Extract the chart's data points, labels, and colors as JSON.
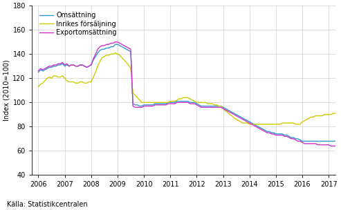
{
  "title": "",
  "ylabel": "Index (2010=100)",
  "xlabel": "",
  "source": "Källa: Statistikcentralen",
  "ylim": [
    40,
    180
  ],
  "yticks": [
    40,
    60,
    80,
    100,
    120,
    140,
    160,
    180
  ],
  "xlim": [
    2005.75,
    2017.25
  ],
  "xticks": [
    2006,
    2007,
    2008,
    2009,
    2010,
    2011,
    2012,
    2013,
    2014,
    2015,
    2016,
    2017
  ],
  "legend_labels": [
    "Omsättning",
    "Inrikes försäljning",
    "Exportomsättning"
  ],
  "colors": [
    "#3399cc",
    "#cccc00",
    "#cc33cc"
  ],
  "line_width": 1.0,
  "omsattning": [
    125,
    127,
    126,
    127,
    128,
    129,
    129,
    130,
    130,
    131,
    131,
    132,
    130,
    131,
    130,
    131,
    131,
    130,
    130,
    131,
    131,
    130,
    129,
    130,
    131,
    135,
    138,
    141,
    143,
    144,
    144,
    145,
    145,
    146,
    146,
    148,
    148,
    147,
    146,
    145,
    144,
    143,
    142,
    99,
    98,
    98,
    97,
    97,
    98,
    98,
    98,
    98,
    98,
    99,
    99,
    99,
    99,
    99,
    99,
    100,
    100,
    100,
    100,
    101,
    101,
    101,
    101,
    101,
    101,
    100,
    100,
    100,
    99,
    98,
    97,
    97,
    97,
    97,
    97,
    97,
    97,
    97,
    97,
    97,
    96,
    95,
    94,
    93,
    92,
    91,
    90,
    89,
    88,
    87,
    86,
    85,
    84,
    83,
    82,
    81,
    80,
    79,
    78,
    77,
    76,
    76,
    75,
    75,
    74,
    74,
    74,
    74,
    73,
    73,
    72,
    71,
    71,
    70,
    70,
    69,
    68,
    68,
    68,
    68,
    68,
    68,
    68,
    68,
    68,
    68,
    68,
    68,
    68,
    68,
    68,
    68,
    68,
    68,
    68,
    68,
    68,
    68,
    68,
    68
  ],
  "inrikes": [
    113,
    115,
    116,
    118,
    120,
    121,
    120,
    122,
    122,
    121,
    121,
    122,
    120,
    118,
    117,
    117,
    117,
    116,
    116,
    117,
    117,
    116,
    116,
    117,
    117,
    121,
    125,
    130,
    134,
    137,
    138,
    139,
    139,
    140,
    140,
    141,
    140,
    139,
    137,
    135,
    133,
    131,
    128,
    108,
    106,
    104,
    102,
    100,
    100,
    100,
    100,
    100,
    100,
    100,
    100,
    100,
    100,
    100,
    100,
    100,
    101,
    101,
    101,
    102,
    103,
    103,
    104,
    104,
    104,
    103,
    102,
    101,
    100,
    100,
    100,
    100,
    100,
    99,
    99,
    99,
    98,
    98,
    97,
    97,
    95,
    93,
    92,
    90,
    89,
    87,
    86,
    85,
    84,
    83,
    83,
    83,
    82,
    82,
    82,
    82,
    82,
    82,
    82,
    82,
    82,
    82,
    82,
    82,
    82,
    82,
    82,
    83,
    83,
    83,
    83,
    83,
    83,
    82,
    82,
    82,
    84,
    85,
    86,
    87,
    88,
    88,
    89,
    89,
    89,
    89,
    90,
    90,
    90,
    90,
    91,
    91,
    91,
    91,
    91,
    91,
    91,
    91,
    91,
    91
  ],
  "export": [
    126,
    128,
    127,
    128,
    129,
    130,
    130,
    131,
    131,
    132,
    132,
    133,
    131,
    132,
    130,
    131,
    131,
    130,
    130,
    131,
    131,
    130,
    129,
    130,
    131,
    136,
    140,
    144,
    146,
    147,
    147,
    148,
    148,
    149,
    149,
    150,
    150,
    149,
    148,
    147,
    146,
    145,
    144,
    97,
    96,
    96,
    96,
    96,
    97,
    97,
    97,
    97,
    97,
    98,
    98,
    98,
    98,
    98,
    98,
    99,
    99,
    99,
    99,
    100,
    100,
    100,
    100,
    100,
    100,
    99,
    99,
    99,
    98,
    97,
    96,
    96,
    96,
    96,
    96,
    96,
    96,
    96,
    96,
    96,
    95,
    94,
    93,
    92,
    91,
    90,
    89,
    88,
    87,
    86,
    85,
    84,
    83,
    82,
    81,
    80,
    79,
    78,
    77,
    76,
    75,
    75,
    74,
    74,
    73,
    73,
    73,
    73,
    72,
    72,
    71,
    70,
    70,
    69,
    68,
    68,
    67,
    66,
    66,
    66,
    66,
    66,
    66,
    65,
    65,
    65,
    65,
    65,
    65,
    64,
    64,
    64,
    64,
    64,
    64,
    64,
    64,
    64,
    64,
    64
  ],
  "n_months": 144
}
